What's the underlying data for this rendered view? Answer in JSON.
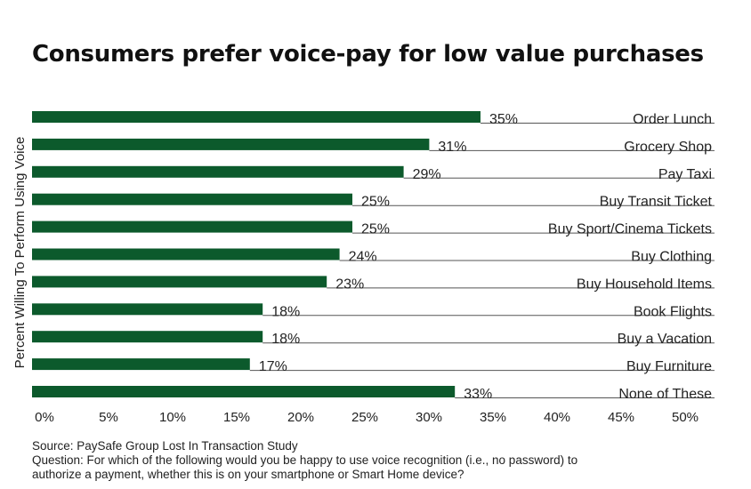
{
  "chart_data": {
    "type": "bar",
    "orientation": "horizontal",
    "title": "Consumers prefer voice-pay for low value purchases",
    "ylabel": "Percent Willing To Perform Using Voice",
    "xlabel": "",
    "categories": [
      "Order Lunch",
      "Grocery Shop",
      "Pay Taxi",
      "Buy Transit Ticket",
      "Buy Sport/Cinema Tickets",
      "Buy Clothing",
      "Buy Household Items",
      "Book Flights",
      "Buy a Vacation",
      "Buy Furniture",
      "None of These"
    ],
    "values": [
      35,
      31,
      29,
      25,
      25,
      24,
      23,
      18,
      18,
      17,
      33
    ],
    "value_labels": [
      "35%",
      "31%",
      "29%",
      "25%",
      "25%",
      "24%",
      "23%",
      "18%",
      "18%",
      "17%",
      "33%"
    ],
    "xlim": [
      0,
      50
    ],
    "xticks": [
      0,
      5,
      10,
      15,
      20,
      25,
      30,
      35,
      40,
      45,
      50
    ],
    "xtick_labels": [
      "0%",
      "5%",
      "10%",
      "15%",
      "20%",
      "25%",
      "30%",
      "35%",
      "40%",
      "45%",
      "50%"
    ],
    "grid": false,
    "bar_color": "#0c5a2c"
  },
  "footer": {
    "source": "Source: PaySafe Group Lost In Transaction Study",
    "question_line1": "Question: For which of the following would you be happy to use voice recognition (i.e., no password) to",
    "question_line2": "authorize a payment, whether this is on your smartphone or Smart Home device?"
  }
}
